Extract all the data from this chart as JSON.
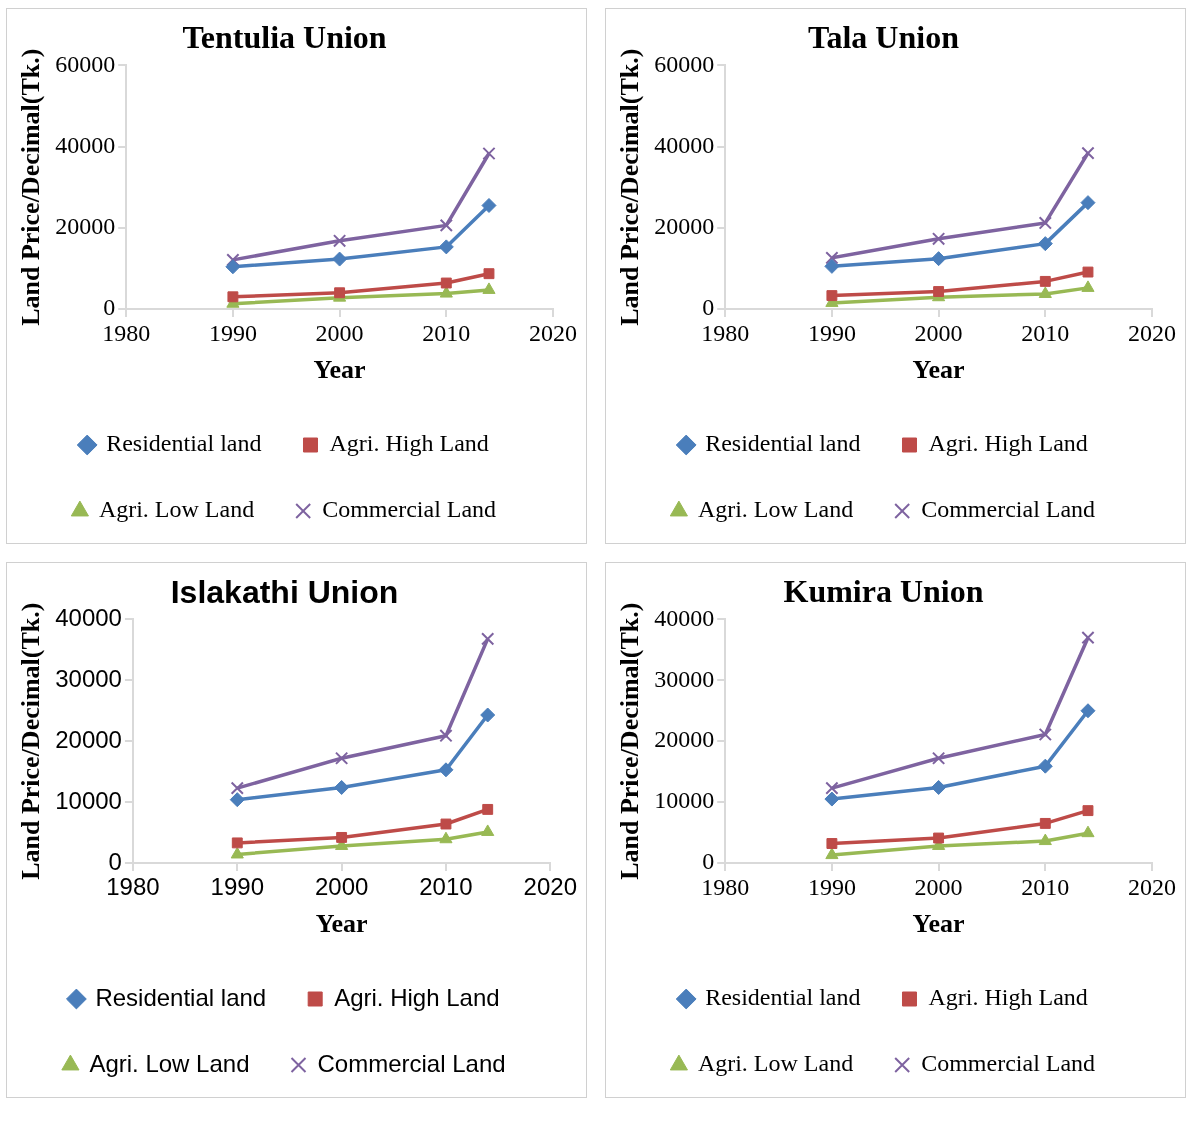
{
  "chart_data": [
    {
      "type": "line",
      "title": "Tentulia Union",
      "xlabel": "Year",
      "ylabel": "Land Price/Decimal(Tk.)",
      "x": [
        1990,
        2000,
        2010,
        2014
      ],
      "xlim": [
        1980,
        2020
      ],
      "xticks": [
        1980,
        1990,
        2000,
        2010,
        2020
      ],
      "ylim": [
        0,
        60000
      ],
      "yticks": [
        0,
        20000,
        40000,
        60000
      ],
      "grid": false,
      "legend": "bottom",
      "series": [
        {
          "name": "Residential land",
          "color": "#4a7ebb",
          "marker": "diamond",
          "values": [
            10400,
            12300,
            15300,
            25500
          ]
        },
        {
          "name": "Agri. High Land",
          "color": "#be4b48",
          "marker": "square",
          "values": [
            3000,
            4000,
            6400,
            8700
          ]
        },
        {
          "name": "Agri. Low Land",
          "color": "#98b954",
          "marker": "triangle",
          "values": [
            1300,
            2800,
            3800,
            4700
          ]
        },
        {
          "name": "Commercial Land",
          "color": "#7e63a0",
          "marker": "cross",
          "values": [
            12100,
            16800,
            20600,
            38300
          ]
        }
      ]
    },
    {
      "type": "line",
      "title": "Tala Union",
      "xlabel": "Year",
      "ylabel": "Land Price/Decimal(Tk.)",
      "x": [
        1990,
        2000,
        2010,
        2014
      ],
      "xlim": [
        1980,
        2020
      ],
      "xticks": [
        1980,
        1990,
        2000,
        2010,
        2020
      ],
      "ylim": [
        0,
        60000
      ],
      "yticks": [
        0,
        20000,
        40000,
        60000
      ],
      "grid": false,
      "legend": "bottom",
      "series": [
        {
          "name": "Residential land",
          "color": "#4a7ebb",
          "marker": "diamond",
          "values": [
            10500,
            12400,
            16100,
            26200
          ]
        },
        {
          "name": "Agri. High Land",
          "color": "#be4b48",
          "marker": "square",
          "values": [
            3300,
            4300,
            6800,
            9100
          ]
        },
        {
          "name": "Agri. Low Land",
          "color": "#98b954",
          "marker": "triangle",
          "values": [
            1500,
            2900,
            3700,
            5200
          ]
        },
        {
          "name": "Commercial Land",
          "color": "#7e63a0",
          "marker": "cross",
          "values": [
            12600,
            17300,
            21200,
            38400
          ]
        }
      ]
    },
    {
      "type": "line",
      "title": "Islakathi Union",
      "xlabel": "Year",
      "ylabel": "Land Price/Decimal(Tk.)",
      "x": [
        1990,
        2000,
        2010,
        2014
      ],
      "xlim": [
        1980,
        2020
      ],
      "xticks": [
        1980,
        1990,
        2000,
        2010,
        2020
      ],
      "ylim": [
        0,
        40000
      ],
      "yticks": [
        0,
        10000,
        20000,
        30000,
        40000
      ],
      "grid": false,
      "legend": "bottom",
      "series": [
        {
          "name": "Residential land",
          "color": "#4a7ebb",
          "marker": "diamond",
          "values": [
            10400,
            12400,
            15300,
            24300
          ]
        },
        {
          "name": "Agri. High Land",
          "color": "#be4b48",
          "marker": "square",
          "values": [
            3300,
            4200,
            6400,
            8800
          ]
        },
        {
          "name": "Agri. Low Land",
          "color": "#98b954",
          "marker": "triangle",
          "values": [
            1400,
            2800,
            3900,
            5100
          ]
        },
        {
          "name": "Commercial Land",
          "color": "#7e63a0",
          "marker": "cross",
          "values": [
            12300,
            17200,
            20900,
            36800
          ]
        }
      ]
    },
    {
      "type": "line",
      "title": "Kumira Union",
      "xlabel": "Year",
      "ylabel": "Land Price/Decimal(Tk.)",
      "x": [
        1990,
        2000,
        2010,
        2014
      ],
      "xlim": [
        1980,
        2020
      ],
      "xticks": [
        1980,
        1990,
        2000,
        2010,
        2020
      ],
      "ylim": [
        0,
        40000
      ],
      "yticks": [
        0,
        10000,
        20000,
        30000,
        40000
      ],
      "grid": false,
      "legend": "bottom",
      "series": [
        {
          "name": "Residential land",
          "color": "#4a7ebb",
          "marker": "diamond",
          "values": [
            10500,
            12400,
            15900,
            25000
          ]
        },
        {
          "name": "Agri. High Land",
          "color": "#be4b48",
          "marker": "square",
          "values": [
            3200,
            4100,
            6500,
            8600
          ]
        },
        {
          "name": "Agri. Low Land",
          "color": "#98b954",
          "marker": "triangle",
          "values": [
            1300,
            2800,
            3600,
            4900
          ]
        },
        {
          "name": "Commercial Land",
          "color": "#7e63a0",
          "marker": "cross",
          "values": [
            12300,
            17200,
            21100,
            37000
          ]
        }
      ]
    }
  ]
}
